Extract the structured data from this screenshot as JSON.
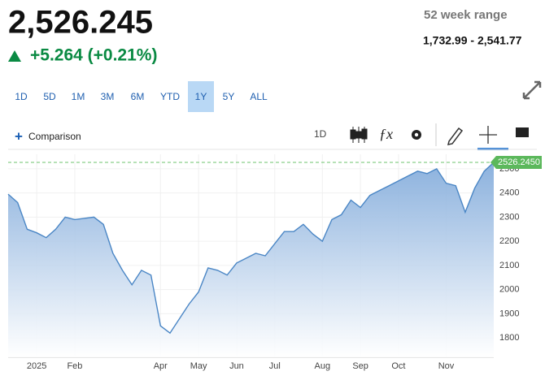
{
  "header": {
    "price": "2,526.245",
    "change": "+5.264 (+0.21%)",
    "range_title": "52 week range",
    "range_values": "1,732.99 - 2,541.77"
  },
  "ranges": {
    "items": [
      "1D",
      "5D",
      "1M",
      "3M",
      "6M",
      "YTD",
      "1Y",
      "5Y",
      "ALL"
    ],
    "selected": "1Y"
  },
  "toolbar": {
    "comparison": "Comparison",
    "interval": "1D"
  },
  "chart_data": {
    "type": "line",
    "categories": [
      null,
      null,
      null,
      "2025",
      null,
      null,
      null,
      "Feb",
      null,
      null,
      null,
      null,
      null,
      null,
      null,
      null,
      "Apr",
      null,
      null,
      null,
      "May",
      null,
      null,
      null,
      "Jun",
      null,
      null,
      null,
      "Jul",
      null,
      null,
      null,
      null,
      "Aug",
      null,
      null,
      null,
      "Sep",
      null,
      null,
      null,
      "Oct",
      null,
      null,
      null,
      null,
      "Nov",
      null,
      null,
      null,
      null,
      null
    ],
    "series": [
      {
        "color": "#4a86c5",
        "values": [
          2395,
          2360,
          2250,
          2235,
          2215,
          2250,
          2300,
          2290,
          2295,
          2300,
          2270,
          2150,
          2080,
          2020,
          2080,
          2060,
          1850,
          1820,
          1880,
          1940,
          1990,
          2090,
          2080,
          2060,
          2110,
          2130,
          2150,
          2140,
          2190,
          2240,
          2240,
          2270,
          2230,
          2200,
          2290,
          2310,
          2370,
          2340,
          2390,
          2410,
          2430,
          2450,
          2470,
          2490,
          2480,
          2500,
          2440,
          2430,
          2320,
          2420,
          2490,
          2526.245
        ]
      }
    ],
    "last_value": {
      "value": 2526.245,
      "label": "2526.2450"
    },
    "ylim": [
      1720,
      2560
    ],
    "yticks": [
      1800,
      1900,
      2000,
      2100,
      2200,
      2300,
      2400,
      2500
    ],
    "grid": true
  }
}
